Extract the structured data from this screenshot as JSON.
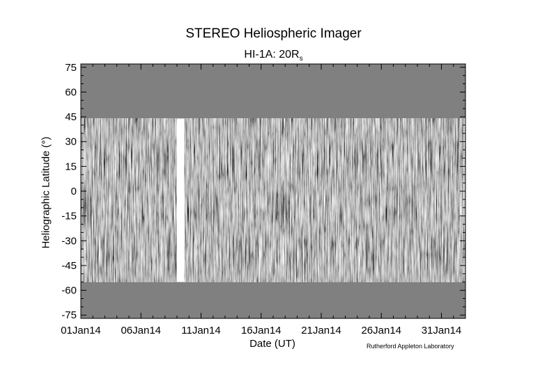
{
  "title": "STEREO Heliospheric Imager",
  "subtitle_main": "HI-1A: 20R",
  "subtitle_sub": "s",
  "credit": "Rutherford Appleton Laboratory",
  "chart_data": {
    "type": "heatmap",
    "title": "STEREO Heliospheric Imager",
    "subtitle": "HI-1A: 20Rs",
    "xlabel": "Date (UT)",
    "ylabel": "Heliographic Latitude (°)",
    "x_range": [
      "2014-01-01",
      "2014-02-02"
    ],
    "x_ticks": [
      "01Jan14",
      "06Jan14",
      "11Jan14",
      "16Jan14",
      "21Jan14",
      "26Jan14",
      "31Jan14"
    ],
    "ylim": [
      -77,
      77
    ],
    "y_ticks": [
      75,
      60,
      45,
      30,
      15,
      0,
      -15,
      -30,
      -45,
      -60,
      -75
    ],
    "data_latitude_band": [
      -55,
      44
    ],
    "data_gap_days": [
      8.0,
      8.6
    ],
    "colormap": "grayscale",
    "no_data_color": "#808080"
  }
}
